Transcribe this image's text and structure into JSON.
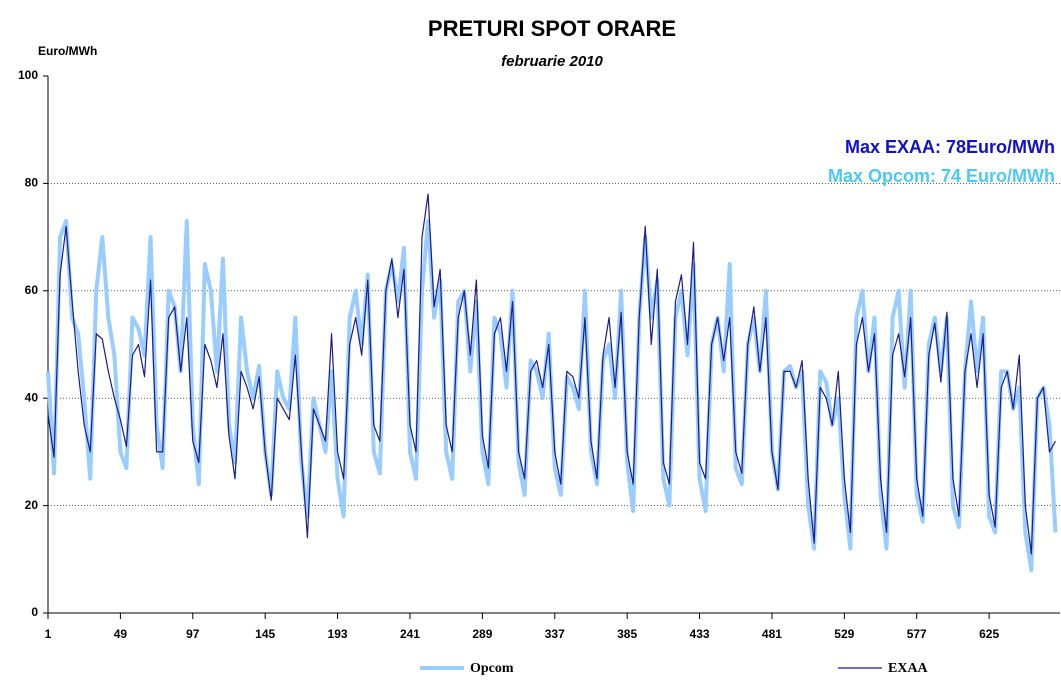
{
  "chart_data": {
    "type": "line",
    "title": "PRETURI SPOT ORARE",
    "subtitle": "februarie 2010",
    "y_label": "Euro/MWh",
    "annotations": [
      "Max EXAA:   78Euro/MWh",
      "Max Opcom:   74 Euro/MWh"
    ],
    "annotation_colors": [
      "#1010c8",
      "#4cc8f4"
    ],
    "x": [
      1,
      5,
      9,
      13,
      17,
      21,
      25,
      29,
      33,
      37,
      41,
      45,
      49,
      53,
      57,
      61,
      65,
      69,
      73,
      77,
      81,
      85,
      89,
      93,
      97,
      101,
      105,
      109,
      113,
      117,
      121,
      125,
      129,
      133,
      137,
      141,
      145,
      149,
      153,
      157,
      161,
      165,
      169,
      173,
      177,
      181,
      185,
      189,
      193,
      197,
      201,
      205,
      209,
      213,
      217,
      221,
      225,
      229,
      233,
      237,
      241,
      245,
      249,
      253,
      257,
      261,
      265,
      269,
      273,
      277,
      281,
      285,
      289,
      293,
      297,
      301,
      305,
      309,
      313,
      317,
      321,
      325,
      329,
      333,
      337,
      341,
      345,
      349,
      353,
      357,
      361,
      365,
      369,
      373,
      377,
      381,
      385,
      389,
      393,
      397,
      401,
      405,
      409,
      413,
      417,
      421,
      425,
      429,
      433,
      437,
      441,
      445,
      449,
      453,
      457,
      461,
      465,
      469,
      473,
      477,
      481,
      485,
      489,
      493,
      497,
      501,
      505,
      509,
      513,
      517,
      521,
      525,
      529,
      533,
      537,
      541,
      545,
      549,
      553,
      557,
      561,
      565,
      569,
      573,
      577,
      581,
      585,
      589,
      593,
      597,
      601,
      605,
      609,
      613,
      617,
      621,
      625,
      629,
      633,
      637,
      641,
      645,
      649,
      653,
      657,
      661,
      665,
      669
    ],
    "series": [
      {
        "name": "Opcom",
        "color": "#99ccff",
        "width": 4,
        "values": [
          45,
          26,
          70,
          73,
          55,
          52,
          40,
          25,
          60,
          70,
          55,
          48,
          30,
          27,
          55,
          53,
          48,
          70,
          35,
          27,
          60,
          57,
          45,
          73,
          35,
          24,
          65,
          60,
          45,
          66,
          35,
          28,
          55,
          45,
          40,
          46,
          30,
          22,
          45,
          40,
          38,
          55,
          28,
          18,
          40,
          35,
          30,
          45,
          25,
          18,
          55,
          60,
          50,
          63,
          30,
          26,
          60,
          65,
          58,
          68,
          30,
          25,
          60,
          73,
          55,
          62,
          30,
          25,
          58,
          60,
          45,
          58,
          30,
          24,
          55,
          52,
          42,
          60,
          28,
          22,
          47,
          45,
          40,
          52,
          27,
          22,
          44,
          42,
          38,
          60,
          30,
          24,
          47,
          50,
          40,
          60,
          28,
          19,
          55,
          70,
          55,
          62,
          25,
          20,
          55,
          60,
          48,
          65,
          25,
          19,
          50,
          55,
          45,
          65,
          27,
          24,
          50,
          55,
          45,
          60,
          30,
          23,
          45,
          46,
          42,
          45,
          20,
          12,
          45,
          43,
          35,
          40,
          22,
          12,
          55,
          60,
          45,
          55,
          22,
          12,
          55,
          60,
          42,
          60,
          22,
          17,
          50,
          55,
          45,
          55,
          20,
          16,
          45,
          58,
          45,
          55,
          18,
          15,
          45,
          45,
          38,
          42,
          15,
          8,
          40,
          42,
          35,
          15
        ]
      },
      {
        "name": "EXAA",
        "color": "#1c1c8a",
        "width": 1.2,
        "values": [
          37,
          29,
          63,
          72,
          58,
          45,
          35,
          30,
          52,
          51,
          45,
          40,
          36,
          31,
          48,
          50,
          44,
          62,
          30,
          30,
          55,
          57,
          45,
          55,
          32,
          28,
          50,
          47,
          42,
          52,
          33,
          25,
          45,
          42,
          38,
          44,
          30,
          21,
          40,
          38,
          36,
          48,
          30,
          14,
          38,
          35,
          32,
          52,
          30,
          25,
          50,
          55,
          48,
          62,
          35,
          32,
          60,
          66,
          55,
          64,
          35,
          30,
          70,
          78,
          57,
          64,
          35,
          30,
          55,
          60,
          48,
          62,
          33,
          27,
          52,
          55,
          45,
          58,
          30,
          25,
          45,
          47,
          42,
          50,
          30,
          24,
          45,
          44,
          40,
          55,
          32,
          25,
          48,
          55,
          42,
          56,
          30,
          24,
          55,
          72,
          50,
          64,
          28,
          24,
          58,
          63,
          50,
          69,
          28,
          25,
          50,
          55,
          47,
          55,
          30,
          26,
          50,
          57,
          45,
          55,
          30,
          23,
          45,
          45,
          42,
          47,
          25,
          13,
          42,
          40,
          35,
          45,
          25,
          15,
          50,
          55,
          45,
          52,
          25,
          15,
          48,
          52,
          44,
          55,
          25,
          18,
          48,
          54,
          43,
          56,
          25,
          18,
          45,
          52,
          42,
          52,
          22,
          16,
          42,
          45,
          38,
          48,
          20,
          11,
          40,
          42,
          30,
          32
        ]
      }
    ],
    "xlim": [
      1,
      672
    ],
    "xticks": [
      1,
      49,
      97,
      145,
      193,
      241,
      289,
      337,
      385,
      433,
      481,
      529,
      577,
      625
    ],
    "ylim": [
      0,
      100
    ],
    "yticks": [
      0,
      20,
      40,
      60,
      80,
      100
    ],
    "grid": true,
    "legend": "bottom"
  }
}
